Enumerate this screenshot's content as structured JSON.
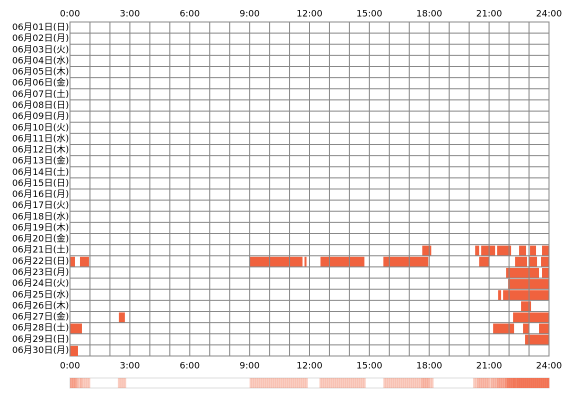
{
  "chart_data": {
    "type": "timeline",
    "color": "#f0623e",
    "xlim": [
      0,
      24
    ],
    "xticks": [
      {
        "value": 0,
        "label": "0:00"
      },
      {
        "value": 3,
        "label": "3:00"
      },
      {
        "value": 6,
        "label": "6:00"
      },
      {
        "value": 9,
        "label": "9:00"
      },
      {
        "value": 12,
        "label": "12:00"
      },
      {
        "value": 15,
        "label": "15:00"
      },
      {
        "value": 18,
        "label": "18:00"
      },
      {
        "value": 21,
        "label": "21:00"
      },
      {
        "value": 24,
        "label": "24:00"
      }
    ],
    "minor_xticks": [
      1,
      2,
      4,
      5,
      7,
      8,
      10,
      11,
      13,
      14,
      16,
      17,
      19,
      20,
      22,
      23
    ],
    "rows": [
      {
        "label": "06月01日(日)",
        "segments": []
      },
      {
        "label": "06月02日(月)",
        "segments": []
      },
      {
        "label": "06月03日(火)",
        "segments": []
      },
      {
        "label": "06月04日(水)",
        "segments": []
      },
      {
        "label": "06月05日(木)",
        "segments": []
      },
      {
        "label": "06月06日(金)",
        "segments": []
      },
      {
        "label": "06月07日(土)",
        "segments": []
      },
      {
        "label": "06月08日(日)",
        "segments": []
      },
      {
        "label": "06月09日(月)",
        "segments": []
      },
      {
        "label": "06月10日(火)",
        "segments": []
      },
      {
        "label": "06月11日(水)",
        "segments": []
      },
      {
        "label": "06月12日(木)",
        "segments": []
      },
      {
        "label": "06月13日(金)",
        "segments": []
      },
      {
        "label": "06月14日(土)",
        "segments": []
      },
      {
        "label": "06月15日(日)",
        "segments": []
      },
      {
        "label": "06月16日(月)",
        "segments": []
      },
      {
        "label": "06月17日(火)",
        "segments": []
      },
      {
        "label": "06月18日(水)",
        "segments": []
      },
      {
        "label": "06月19日(木)",
        "segments": []
      },
      {
        "label": "06月20日(金)",
        "segments": []
      },
      {
        "label": "06月21日(土)",
        "segments": [
          [
            17.65,
            18.1
          ],
          [
            20.3,
            20.5
          ],
          [
            20.6,
            21.3
          ],
          [
            21.4,
            22.1
          ],
          [
            22.5,
            22.85
          ],
          [
            23.05,
            23.35
          ],
          [
            23.65,
            24
          ]
        ]
      },
      {
        "label": "06月22日(日)",
        "segments": [
          [
            0,
            0.25
          ],
          [
            0.5,
            0.95
          ],
          [
            9.0,
            11.65
          ],
          [
            11.75,
            11.85
          ],
          [
            12.55,
            14.75
          ],
          [
            15.7,
            17.95
          ],
          [
            20.5,
            21.0
          ],
          [
            22.3,
            22.9
          ],
          [
            23.0,
            23.4
          ],
          [
            23.6,
            24
          ]
        ]
      },
      {
        "label": "06月23日(月)",
        "segments": [
          [
            21.85,
            23.5
          ],
          [
            23.65,
            24
          ]
        ]
      },
      {
        "label": "06月24日(火)",
        "segments": [
          [
            21.95,
            24
          ]
        ]
      },
      {
        "label": "06月25日(水)",
        "segments": [
          [
            21.45,
            21.6
          ],
          [
            21.7,
            24
          ]
        ]
      },
      {
        "label": "06月26日(木)",
        "segments": [
          [
            22.6,
            23.1
          ]
        ]
      },
      {
        "label": "06月27日(金)",
        "segments": [
          [
            2.45,
            2.75
          ],
          [
            22.2,
            24
          ]
        ]
      },
      {
        "label": "06月28日(土)",
        "segments": [
          [
            0,
            0.6
          ],
          [
            21.2,
            22.25
          ],
          [
            22.7,
            23.0
          ],
          [
            23.5,
            24
          ]
        ]
      },
      {
        "label": "06月29日(日)",
        "segments": [
          [
            22.8,
            24
          ]
        ]
      },
      {
        "label": "06月30日(月)",
        "segments": [
          [
            0,
            0.4
          ]
        ]
      }
    ]
  }
}
